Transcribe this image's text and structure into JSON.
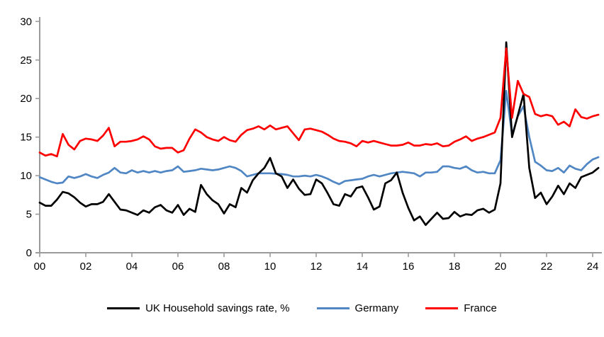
{
  "chart_data": {
    "type": "line",
    "title": "",
    "xlabel": "",
    "ylabel": "",
    "grid": false,
    "legend_position": "bottom",
    "ylim": [
      0,
      30
    ],
    "y_ticks": [
      0,
      5,
      10,
      15,
      20,
      25,
      30
    ],
    "x_tick_years": [
      2000,
      2002,
      2004,
      2006,
      2008,
      2010,
      2012,
      2014,
      2016,
      2018,
      2020,
      2022,
      2024
    ],
    "x_tick_labels": [
      "00",
      "02",
      "04",
      "06",
      "08",
      "10",
      "12",
      "14",
      "16",
      "18",
      "20",
      "22",
      "24"
    ],
    "x_start": 2000,
    "x_step": 0.25,
    "x_end": 2024.25,
    "frequency": "quarterly",
    "axis_color": "#9b9b9b",
    "series": [
      {
        "name": "UK Household savings rate, %",
        "color": "#000000",
        "values": [
          6.5,
          6.1,
          6.1,
          6.9,
          7.9,
          7.7,
          7.2,
          6.5,
          6.0,
          6.3,
          6.3,
          6.6,
          7.6,
          6.6,
          5.6,
          5.5,
          5.2,
          4.9,
          5.5,
          5.2,
          5.9,
          6.2,
          5.5,
          5.2,
          6.2,
          4.9,
          5.7,
          5.3,
          8.8,
          7.6,
          6.8,
          6.3,
          5.1,
          6.3,
          5.9,
          8.4,
          7.8,
          9.4,
          10.3,
          11.0,
          12.3,
          10.3,
          9.9,
          8.4,
          9.5,
          8.3,
          7.5,
          7.6,
          9.5,
          9.0,
          7.7,
          6.3,
          6.1,
          7.6,
          7.3,
          8.4,
          8.6,
          7.2,
          5.6,
          6.0,
          9.0,
          9.4,
          10.4,
          7.8,
          5.8,
          4.2,
          4.7,
          3.6,
          4.4,
          5.2,
          4.4,
          4.5,
          5.3,
          4.7,
          5.0,
          4.9,
          5.5,
          5.7,
          5.2,
          5.6,
          9.0,
          27.3,
          15.0,
          17.8,
          20.6,
          11.0,
          7.1,
          7.8,
          6.3,
          7.3,
          8.7,
          7.6,
          9.0,
          8.4,
          9.8,
          10.1,
          10.4,
          11.0
        ]
      },
      {
        "name": "Germany",
        "color": "#4f86c3",
        "values": [
          9.8,
          9.5,
          9.2,
          9.0,
          9.1,
          9.9,
          9.7,
          9.9,
          10.2,
          9.9,
          9.7,
          10.1,
          10.4,
          11.0,
          10.4,
          10.3,
          10.7,
          10.4,
          10.6,
          10.4,
          10.6,
          10.4,
          10.6,
          10.7,
          11.2,
          10.5,
          10.6,
          10.7,
          10.9,
          10.8,
          10.7,
          10.8,
          11.0,
          11.2,
          11.0,
          10.6,
          9.9,
          10.1,
          10.3,
          10.3,
          10.3,
          10.25,
          10.2,
          10.1,
          9.9,
          9.9,
          10.0,
          9.9,
          10.1,
          9.9,
          9.6,
          9.2,
          8.9,
          9.3,
          9.4,
          9.5,
          9.6,
          9.9,
          10.1,
          9.9,
          10.1,
          10.3,
          10.4,
          10.5,
          10.4,
          10.3,
          9.9,
          10.4,
          10.4,
          10.5,
          11.2,
          11.2,
          11.0,
          10.9,
          11.2,
          10.7,
          10.4,
          10.5,
          10.3,
          10.3,
          12.0,
          21.0,
          15.3,
          17.7,
          19.0,
          15.0,
          11.8,
          11.3,
          10.7,
          10.6,
          11.0,
          10.4,
          11.3,
          10.9,
          10.7,
          11.5,
          12.1,
          12.4
        ]
      },
      {
        "name": "France",
        "color": "#fe0000",
        "values": [
          13.0,
          12.6,
          12.8,
          12.5,
          15.4,
          14.0,
          13.4,
          14.5,
          14.8,
          14.7,
          14.5,
          15.2,
          16.2,
          13.8,
          14.4,
          14.4,
          14.5,
          14.7,
          15.1,
          14.7,
          13.8,
          13.5,
          13.6,
          13.6,
          13.0,
          13.3,
          14.8,
          16.0,
          15.6,
          15.0,
          14.7,
          14.5,
          15.0,
          14.6,
          14.4,
          15.3,
          15.9,
          16.1,
          16.4,
          16.0,
          16.5,
          16.0,
          16.2,
          16.4,
          15.5,
          14.6,
          16.0,
          16.1,
          15.9,
          15.7,
          15.3,
          14.8,
          14.5,
          14.4,
          14.2,
          13.8,
          14.5,
          14.3,
          14.5,
          14.3,
          14.1,
          13.9,
          13.9,
          14.0,
          14.3,
          13.9,
          13.9,
          14.1,
          14.0,
          14.2,
          13.8,
          13.9,
          14.4,
          14.7,
          15.1,
          14.5,
          14.8,
          15.0,
          15.3,
          15.6,
          17.5,
          26.5,
          17.5,
          22.3,
          20.6,
          20.2,
          18.0,
          17.7,
          17.9,
          17.7,
          16.6,
          17.0,
          16.4,
          18.6,
          17.6,
          17.4,
          17.7,
          17.9
        ]
      }
    ]
  },
  "legend": {
    "items": [
      {
        "label": "UK Household savings rate, %"
      },
      {
        "label": "Germany"
      },
      {
        "label": "France"
      }
    ]
  }
}
